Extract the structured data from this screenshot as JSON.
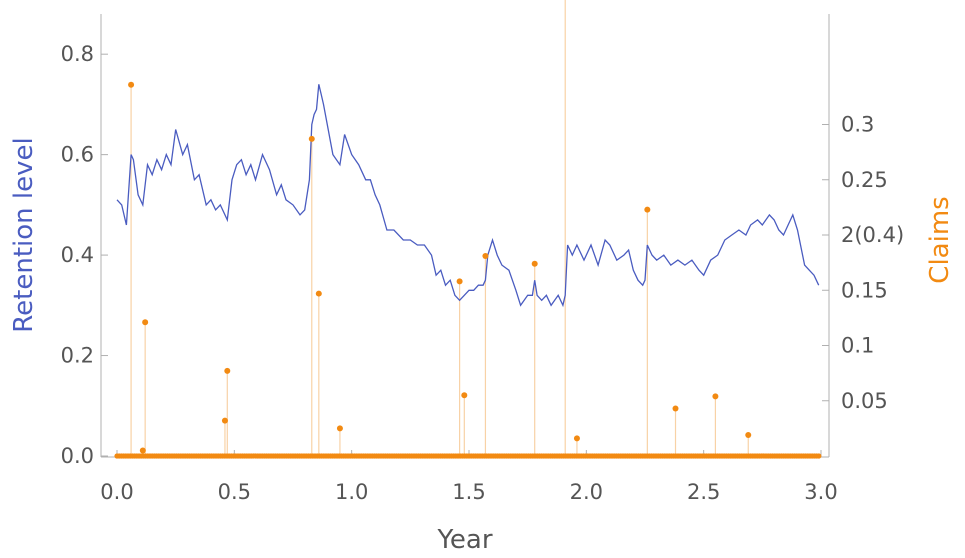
{
  "chart_data": {
    "type": "line",
    "xlabel": "Year",
    "ylabel_left": "Retention level",
    "ylabel_right": "Claims",
    "xlim": [
      0,
      3
    ],
    "ylim_left": [
      0,
      0.88
    ],
    "ylim_right": [
      0,
      0.4
    ],
    "x_ticks": [
      "0.0",
      "0.5",
      "1.0",
      "1.5",
      "2.0",
      "2.5",
      "3.0"
    ],
    "y_left_ticks": [
      "0.0",
      "0.2",
      "0.4",
      "0.6",
      "0.8"
    ],
    "y_right_ticks": [
      "0.05",
      "0.1",
      "0.15",
      "2(0.4)",
      "0.25",
      "0.3"
    ],
    "colors": {
      "retention": "#4a5cc0",
      "claims": "#f28a12",
      "stem": "#f8d2a6"
    },
    "series": [
      {
        "name": "Retention level",
        "x": [
          0.0,
          0.02,
          0.04,
          0.06,
          0.07,
          0.09,
          0.11,
          0.13,
          0.15,
          0.17,
          0.19,
          0.21,
          0.23,
          0.25,
          0.28,
          0.3,
          0.33,
          0.35,
          0.38,
          0.4,
          0.42,
          0.44,
          0.47,
          0.49,
          0.51,
          0.53,
          0.55,
          0.57,
          0.59,
          0.62,
          0.65,
          0.68,
          0.7,
          0.72,
          0.75,
          0.78,
          0.8,
          0.82,
          0.83,
          0.84,
          0.85,
          0.86,
          0.87,
          0.88,
          0.9,
          0.92,
          0.95,
          0.97,
          1.0,
          1.03,
          1.06,
          1.08,
          1.1,
          1.12,
          1.15,
          1.18,
          1.22,
          1.25,
          1.28,
          1.31,
          1.34,
          1.36,
          1.38,
          1.4,
          1.42,
          1.44,
          1.46,
          1.48,
          1.5,
          1.52,
          1.54,
          1.56,
          1.57,
          1.58,
          1.6,
          1.62,
          1.64,
          1.67,
          1.7,
          1.72,
          1.75,
          1.77,
          1.78,
          1.79,
          1.81,
          1.83,
          1.85,
          1.88,
          1.9,
          1.91,
          1.92,
          1.94,
          1.96,
          1.99,
          2.02,
          2.05,
          2.08,
          2.1,
          2.13,
          2.16,
          2.18,
          2.2,
          2.22,
          2.24,
          2.25,
          2.26,
          2.28,
          2.3,
          2.33,
          2.36,
          2.39,
          2.42,
          2.45,
          2.48,
          2.5,
          2.53,
          2.56,
          2.59,
          2.62,
          2.65,
          2.68,
          2.7,
          2.73,
          2.75,
          2.78,
          2.8,
          2.82,
          2.84,
          2.86,
          2.88,
          2.9,
          2.93,
          2.95,
          2.97,
          2.99
        ],
        "values": [
          0.51,
          0.5,
          0.46,
          0.6,
          0.59,
          0.52,
          0.5,
          0.58,
          0.56,
          0.59,
          0.57,
          0.6,
          0.58,
          0.65,
          0.6,
          0.62,
          0.55,
          0.56,
          0.5,
          0.51,
          0.49,
          0.5,
          0.47,
          0.55,
          0.58,
          0.59,
          0.56,
          0.58,
          0.55,
          0.6,
          0.57,
          0.52,
          0.54,
          0.51,
          0.5,
          0.48,
          0.49,
          0.55,
          0.66,
          0.68,
          0.69,
          0.74,
          0.72,
          0.7,
          0.65,
          0.6,
          0.58,
          0.64,
          0.6,
          0.58,
          0.55,
          0.55,
          0.52,
          0.5,
          0.45,
          0.45,
          0.43,
          0.43,
          0.42,
          0.42,
          0.4,
          0.36,
          0.37,
          0.34,
          0.35,
          0.32,
          0.31,
          0.32,
          0.33,
          0.33,
          0.34,
          0.34,
          0.35,
          0.4,
          0.43,
          0.4,
          0.38,
          0.37,
          0.33,
          0.3,
          0.32,
          0.32,
          0.35,
          0.32,
          0.31,
          0.32,
          0.3,
          0.32,
          0.3,
          0.32,
          0.42,
          0.4,
          0.42,
          0.39,
          0.42,
          0.38,
          0.43,
          0.42,
          0.39,
          0.4,
          0.41,
          0.37,
          0.35,
          0.34,
          0.35,
          0.42,
          0.4,
          0.39,
          0.4,
          0.38,
          0.39,
          0.38,
          0.39,
          0.37,
          0.36,
          0.39,
          0.4,
          0.43,
          0.44,
          0.45,
          0.44,
          0.46,
          0.47,
          0.46,
          0.48,
          0.47,
          0.45,
          0.44,
          0.46,
          0.48,
          0.45,
          0.38,
          0.37,
          0.36,
          0.34
        ]
      },
      {
        "name": "Claims",
        "x": [
          0.06,
          0.11,
          0.12,
          0.46,
          0.47,
          0.83,
          0.86,
          0.95,
          1.46,
          1.48,
          1.57,
          1.78,
          1.91,
          1.96,
          2.26,
          2.38,
          2.55,
          2.69
        ],
        "values": [
          0.336,
          0.005,
          0.121,
          0.032,
          0.077,
          0.287,
          0.147,
          0.025,
          0.158,
          0.055,
          0.181,
          0.174,
          0.419,
          0.016,
          0.223,
          0.043,
          0.054,
          0.019
        ]
      }
    ]
  }
}
